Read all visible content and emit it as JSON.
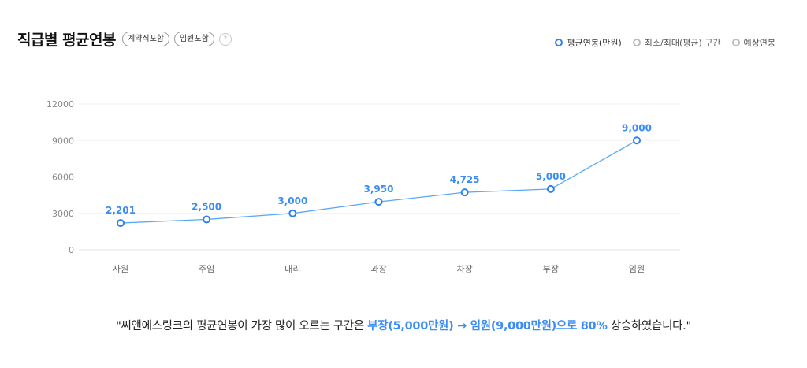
{
  "header": {
    "title": "직급별 평균연봉",
    "chips": [
      "계약직포함",
      "임원포함"
    ],
    "help_label": "?"
  },
  "legend": [
    {
      "label": "평균연봉(만원)",
      "active": true
    },
    {
      "label": "최소/최대(평균) 구간",
      "active": false
    },
    {
      "label": "예상연봉",
      "active": false
    }
  ],
  "chart_data": {
    "type": "line",
    "categories": [
      "사원",
      "주임",
      "대리",
      "과장",
      "차장",
      "부장",
      "임원"
    ],
    "series": [
      {
        "name": "평균연봉(만원)",
        "values": [
          2201,
          2500,
          3000,
          3950,
          4725,
          5000,
          9000
        ]
      }
    ],
    "data_labels": [
      "2,201",
      "2,500",
      "3,000",
      "3,950",
      "4,725",
      "5,000",
      "9,000"
    ],
    "yticks": [
      0,
      3000,
      6000,
      9000,
      12000
    ],
    "ytick_labels": [
      "0",
      "3000",
      "6000",
      "9000",
      "12000"
    ],
    "ylim": [
      0,
      12000
    ],
    "grid": true,
    "line_color": "#5aa8f5",
    "label_color": "#3b8df5"
  },
  "summary": {
    "prefix": "\"씨앤에스링크의 평균연봉이 가장 많이 오르는 구간은 ",
    "highlight1": "부장(5,000만원) → 임원(9,000만원)으로 80%",
    "suffix": " 상승하였습니다.\""
  }
}
